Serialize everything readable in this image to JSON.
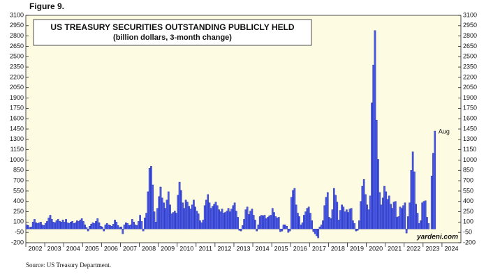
{
  "chart_data": {
    "type": "bar",
    "figure_label": "Figure 9.",
    "title": "US TREASURY SECURITIES OUTSTANDING PUBLICLY HELD",
    "subtitle": "(billion dollars, 3-month change)",
    "annotations": [
      "Aug"
    ],
    "watermark": "yardeni.com",
    "source": "Source: US Treasury Department.",
    "color": "#4b5bea",
    "xlim": [
      2002,
      2025
    ],
    "xticks": [
      2002,
      2003,
      2004,
      2005,
      2006,
      2007,
      2008,
      2009,
      2010,
      2011,
      2012,
      2013,
      2014,
      2015,
      2016,
      2017,
      2018,
      2019,
      2020,
      2021,
      2022,
      2023,
      2024
    ],
    "ylim": [
      -200,
      3100
    ],
    "yticks": [
      -200,
      -50,
      100,
      250,
      400,
      550,
      700,
      850,
      1000,
      1150,
      1300,
      1450,
      1600,
      1750,
      1900,
      2050,
      2200,
      2350,
      2500,
      2650,
      2800,
      2950,
      3100
    ],
    "grid": false,
    "values": [
      60,
      50,
      20,
      30,
      100,
      140,
      90,
      80,
      90,
      100,
      60,
      50,
      80,
      110,
      160,
      200,
      140,
      100,
      90,
      120,
      140,
      110,
      100,
      130,
      100,
      140,
      90,
      80,
      100,
      110,
      80,
      90,
      120,
      110,
      130,
      150,
      110,
      60,
      20,
      -30,
      40,
      70,
      90,
      80,
      110,
      150,
      90,
      40,
      30,
      -30,
      60,
      80,
      60,
      50,
      40,
      70,
      130,
      100,
      50,
      20,
      30,
      -70,
      60,
      90,
      80,
      50,
      60,
      140,
      100,
      60,
      50,
      110,
      200,
      110,
      -30,
      160,
      230,
      540,
      880,
      910,
      640,
      250,
      100,
      300,
      470,
      610,
      450,
      380,
      300,
      420,
      540,
      350,
      220,
      240,
      260,
      230,
      490,
      680,
      560,
      380,
      300,
      420,
      390,
      330,
      290,
      350,
      420,
      320,
      260,
      220,
      120,
      90,
      130,
      340,
      420,
      500,
      380,
      300,
      330,
      360,
      390,
      340,
      280,
      250,
      290,
      230,
      240,
      260,
      300,
      250,
      290,
      340,
      380,
      260,
      170,
      -20,
      -30,
      50,
      140,
      280,
      320,
      210,
      260,
      290,
      200,
      130,
      -30,
      60,
      180,
      200,
      190,
      200,
      150,
      170,
      190,
      200,
      300,
      240,
      180,
      160,
      170,
      -40,
      -30,
      60,
      60,
      40,
      -50,
      -30,
      460,
      560,
      590,
      350,
      230,
      180,
      60,
      90,
      200,
      250,
      300,
      320,
      230,
      120,
      -40,
      -70,
      -100,
      -130,
      30,
      60,
      120,
      340,
      460,
      530,
      170,
      150,
      280,
      590,
      490,
      390,
      130,
      270,
      350,
      320,
      250,
      280,
      240,
      290,
      300,
      120,
      80,
      -30,
      -20,
      120,
      400,
      620,
      720,
      500,
      350,
      280,
      480,
      1830,
      2380,
      2880,
      1580,
      1010,
      530,
      350,
      450,
      620,
      540,
      430,
      480,
      360,
      300,
      390,
      400,
      170,
      180,
      320,
      300,
      340,
      380,
      -60,
      180,
      380,
      850,
      1120,
      830,
      360,
      230,
      80,
      120,
      380,
      400,
      410,
      170,
      80,
      0,
      770,
      1100,
      1420
    ]
  }
}
